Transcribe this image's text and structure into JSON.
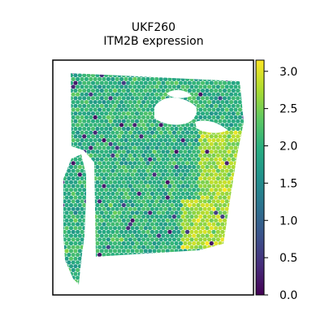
{
  "chart_data": {
    "type": "scatter",
    "title": "UKF260",
    "subtitle": "ITM2B expression",
    "xlabel": "",
    "ylabel": "",
    "grid": false,
    "colorbar": {
      "colormap": "viridis",
      "range": [
        0.0,
        3.15
      ],
      "ticks": [
        0.0,
        0.5,
        1.0,
        1.5,
        2.0,
        2.5,
        3.0
      ],
      "tick_labels": [
        "0.0",
        "0.5",
        "1.0",
        "1.5",
        "2.0",
        "2.5",
        "3.0"
      ]
    },
    "typical_value": 2.0,
    "high_region_value": 2.7
  }
}
